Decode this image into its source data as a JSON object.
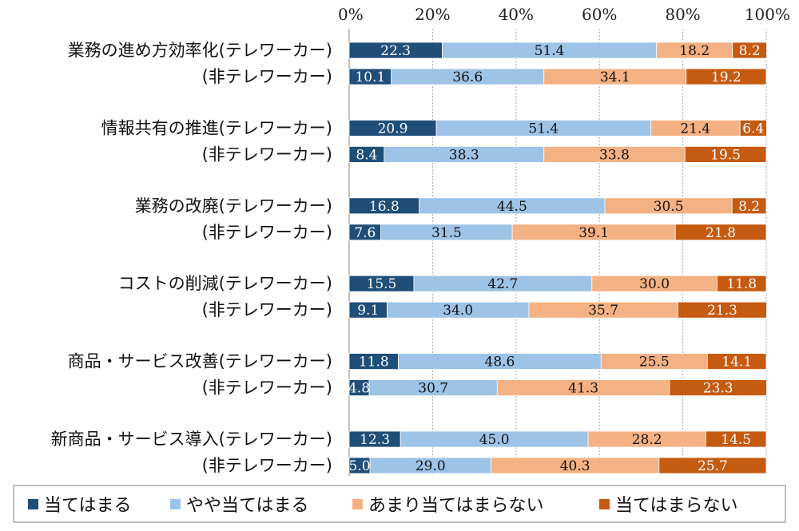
{
  "chart_data": {
    "type": "bar",
    "orientation": "horizontal",
    "stacked": true,
    "normalized": true,
    "title": "",
    "xlabel": "",
    "ylabel": "",
    "xlim": [
      0,
      100
    ],
    "x_ticks": [
      "0%",
      "20%",
      "40%",
      "60%",
      "80%",
      "100%"
    ],
    "grid": true,
    "legend_position": "bottom",
    "categories": [
      "業務の進め方効率化(テレワーカー)",
      "(非テレワーカー)",
      "情報共有の推進(テレワーカー)",
      "(非テレワーカー)",
      "業務の改廃(テレワーカー)",
      "(非テレワーカー)",
      "コストの削減(テレワーカー)",
      "(非テレワーカー)",
      "商品・サービス改善(テレワーカー)",
      "(非テレワーカー)",
      "新商品・サービス導入(テレワーカー)",
      "(非テレワーカー)"
    ],
    "series": [
      {
        "name": "当てはまる",
        "color": "#1f4e79",
        "label_color": "#ffffff",
        "values": [
          22.3,
          10.1,
          20.9,
          8.4,
          16.8,
          7.6,
          15.5,
          9.1,
          11.8,
          4.8,
          12.3,
          5.0
        ],
        "labels": [
          "22.3",
          "10.1",
          "20.9",
          "8.4",
          "16.8",
          "7.6",
          "15.5",
          "9.1",
          "11.8",
          "4.8",
          "12.3",
          "5.0"
        ]
      },
      {
        "name": "やや当てはまる",
        "color": "#9dc3e6",
        "label_color": "#111111",
        "values": [
          51.4,
          36.6,
          51.4,
          38.3,
          44.5,
          31.5,
          42.7,
          34.0,
          48.6,
          30.7,
          45.0,
          29.0
        ],
        "labels": [
          "51.4",
          "36.6",
          "51.4",
          "38.3",
          "44.5",
          "31.5",
          "42.7",
          "34.0",
          "48.6",
          "30.7",
          "45.0",
          "29.0"
        ]
      },
      {
        "name": "あまり当てはまらない",
        "color": "#f4b183",
        "label_color": "#111111",
        "values": [
          18.2,
          34.1,
          21.4,
          33.8,
          30.5,
          39.1,
          30.0,
          35.7,
          25.5,
          41.3,
          28.2,
          40.3
        ],
        "labels": [
          "18.2",
          "34.1",
          "21.4",
          "33.8",
          "30.5",
          "39.1",
          "30.0",
          "35.7",
          "25.5",
          "41.3",
          "28.2",
          "40.3"
        ]
      },
      {
        "name": "当てはまらない",
        "color": "#c55a11",
        "label_color": "#ffffff",
        "values": [
          8.2,
          19.2,
          6.4,
          19.5,
          8.2,
          21.8,
          11.8,
          21.3,
          14.1,
          23.3,
          14.5,
          25.7
        ],
        "labels": [
          "8.2",
          "19.2",
          "6.4",
          "19.5",
          "8.2",
          "21.8",
          "11.8",
          "21.3",
          "14.1",
          "23.3",
          "14.5",
          "25.7"
        ]
      }
    ]
  }
}
